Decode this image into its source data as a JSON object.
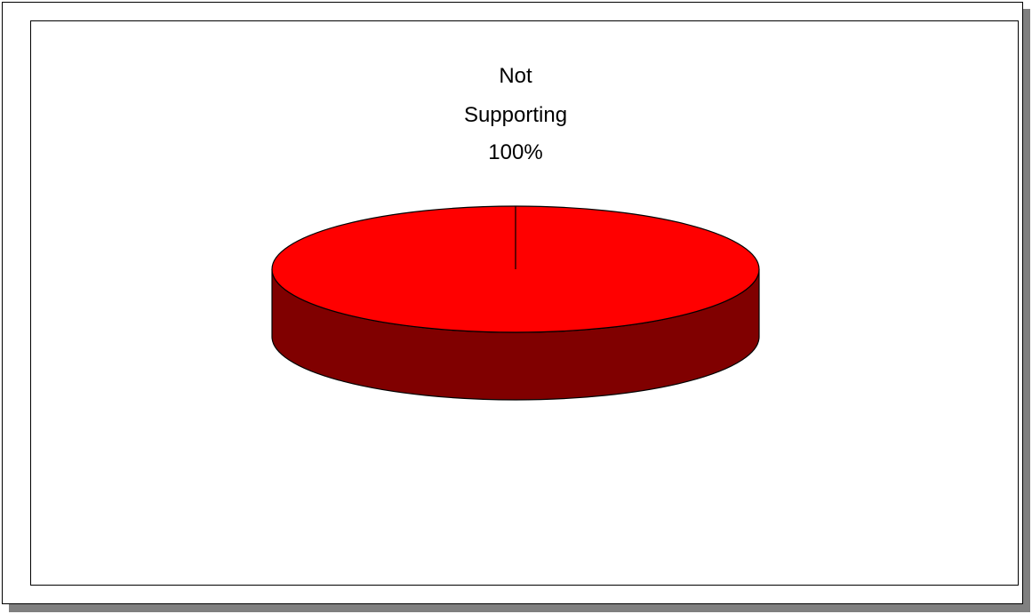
{
  "chart_data": {
    "type": "pie",
    "slices": [
      {
        "label_lines": [
          "Not",
          "Supporting"
        ],
        "value": 100,
        "percent_label": "100%",
        "color": "#ff0000",
        "side_color": "#800000"
      }
    ],
    "legend": "none",
    "style": "3d-pie"
  }
}
